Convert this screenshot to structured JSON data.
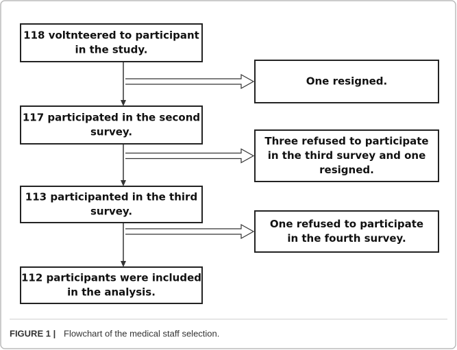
{
  "nodes": [
    {
      "lines": [
        "118 voltnteered to participant",
        "in the study."
      ]
    },
    {
      "lines": [
        "117 participated in the second",
        "survey."
      ]
    },
    {
      "lines": [
        "113 participanted in the third",
        "survey."
      ]
    },
    {
      "lines": [
        "112 participants were included",
        "in the analysis."
      ]
    }
  ],
  "exclusions": [
    {
      "lines": [
        "One resigned."
      ]
    },
    {
      "lines": [
        "Three refused to participate",
        "in the third survey and one",
        "resigned."
      ]
    },
    {
      "lines": [
        "One refused to participate",
        "in the fourth survey."
      ]
    }
  ],
  "caption": {
    "label": "FIGURE 1 |",
    "text": "Flowchart of the medical staff selection."
  }
}
